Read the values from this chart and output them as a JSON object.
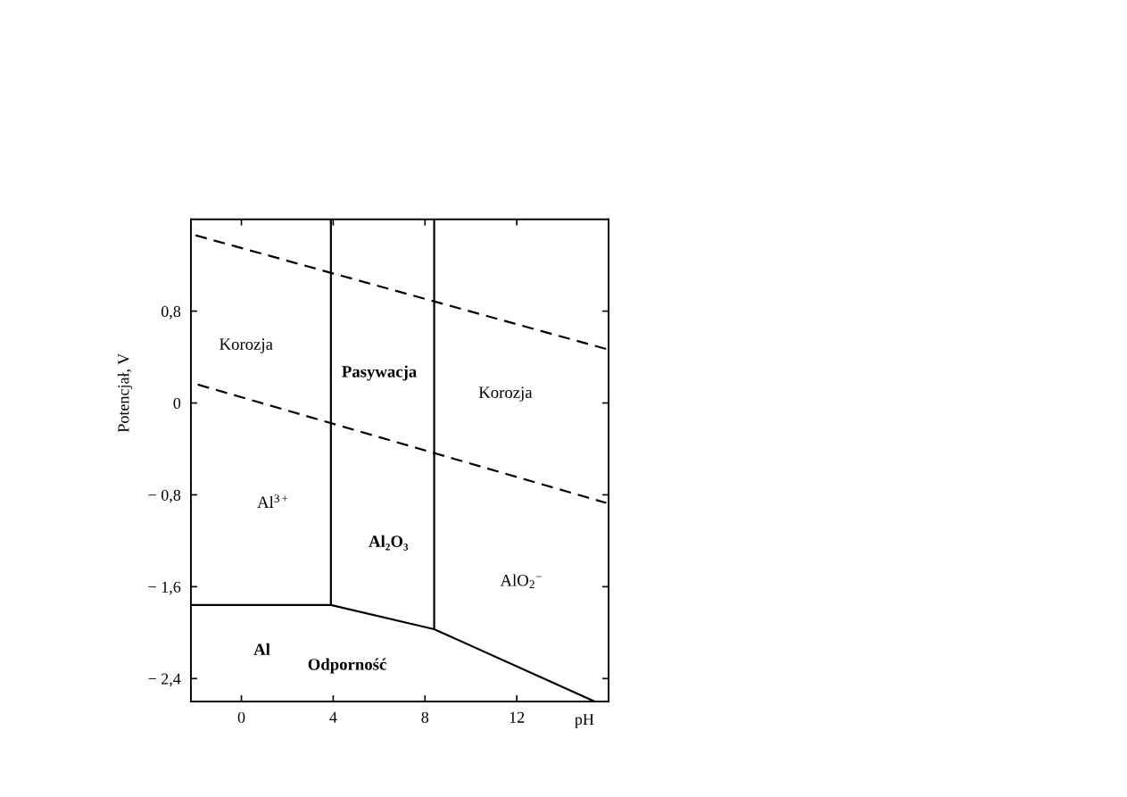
{
  "chart_data": {
    "type": "line",
    "xlabel": "pH",
    "ylabel": "Potencjał, V",
    "xlim": [
      -2.2,
      16
    ],
    "xticks": [
      0,
      4,
      8,
      12
    ],
    "ylim": [
      -2.6,
      1.6
    ],
    "yticks": [
      {
        "value": 0.8,
        "label": "0,8"
      },
      0,
      {
        "value": -0.8,
        "label": "− 0,8"
      },
      {
        "value": -1.6,
        "label": "− 1,6"
      },
      {
        "value": -2.4,
        "label": "− 2,4"
      }
    ],
    "series": [
      {
        "color": "#000000",
        "line_style": "dashed",
        "x": [
          -2,
          15.9
        ],
        "values": [
          1.46,
          0.47
        ]
      },
      {
        "color": "#000000",
        "line_style": "dashed",
        "x": [
          -1.9,
          15.9
        ],
        "values": [
          0.16,
          -0.87
        ]
      },
      {
        "color": "#000000",
        "line_style": "solid",
        "x": [
          3.9,
          3.9
        ],
        "values": [
          1.6,
          -1.76
        ]
      },
      {
        "color": "#000000",
        "line_style": "solid",
        "x": [
          8.4,
          8.4
        ],
        "values": [
          1.6,
          -1.97
        ]
      },
      {
        "color": "#000000",
        "line_style": "solid",
        "x": [
          -2.2,
          3.9,
          8.4,
          15.4
        ],
        "values": [
          -1.76,
          -1.76,
          -1.97,
          -2.6
        ]
      }
    ],
    "annotations": [
      "Korozja",
      "Pasywacja",
      "Korozja",
      "Al$^{3+}$",
      "Al₂O₃",
      "AlO$_{2}$$^{−}$",
      "Al",
      "Odporność"
    ]
  }
}
